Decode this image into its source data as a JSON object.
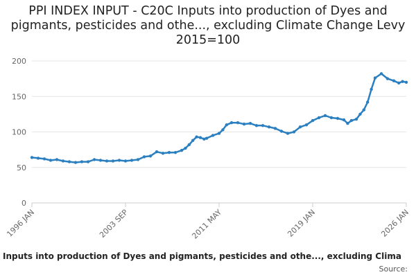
{
  "chart_data": {
    "type": "line",
    "title": "PPI INDEX INPUT - C20C Inputs into production of Dyes and pigmants, pesticides and othe..., excluding Climate Change Levy 2015=100",
    "xlabel": "",
    "ylabel": "",
    "ylim": [
      0,
      200
    ],
    "yticks": [
      0,
      50,
      100,
      150,
      200
    ],
    "xticks": [
      "1996 JAN",
      "2003 SEP",
      "2011 MAY",
      "2019 JAN",
      "2026 JAN"
    ],
    "grid": "horizontal",
    "legend_position": "bottom",
    "color": "#2a7fc1",
    "series": [
      {
        "name": "Inputs into production of Dyes and pigmants, pesticides and othe..., excluding Clima",
        "x": [
          1996.0,
          1996.5,
          1997.0,
          1997.5,
          1998.0,
          1998.5,
          1999.0,
          1999.5,
          2000.0,
          2000.5,
          2001.0,
          2001.5,
          2002.0,
          2002.5,
          2003.0,
          2003.5,
          2004.0,
          2004.5,
          2005.0,
          2005.5,
          2006.0,
          2006.5,
          2007.0,
          2007.5,
          2008.0,
          2008.3,
          2008.6,
          2008.9,
          2009.2,
          2009.5,
          2009.8,
          2010.0,
          2010.5,
          2011.0,
          2011.3,
          2011.6,
          2012.0,
          2012.5,
          2013.0,
          2013.5,
          2014.0,
          2014.5,
          2015.0,
          2015.5,
          2016.0,
          2016.5,
          2017.0,
          2017.5,
          2018.0,
          2018.5,
          2019.0,
          2019.5,
          2020.0,
          2020.5,
          2021.0,
          2021.3,
          2021.6,
          2022.0,
          2022.3,
          2022.6,
          2022.9,
          2023.2,
          2023.5,
          2024.0,
          2024.5,
          2025.0,
          2025.4,
          2025.7,
          2026.0
        ],
        "values": [
          64,
          63,
          62,
          60,
          61,
          59,
          58,
          57,
          58,
          58,
          61,
          60,
          59,
          59,
          60,
          59,
          60,
          61,
          65,
          66,
          72,
          70,
          71,
          71,
          74,
          77,
          82,
          88,
          93,
          92,
          90,
          91,
          95,
          98,
          103,
          110,
          113,
          113,
          111,
          112,
          109,
          109,
          107,
          105,
          101,
          98,
          100,
          107,
          110,
          116,
          120,
          123,
          120,
          119,
          117,
          112,
          116,
          118,
          125,
          131,
          142,
          160,
          176,
          182,
          175,
          172,
          169,
          171,
          170
        ]
      }
    ]
  },
  "legend": {
    "label": "Inputs into production of Dyes and pigmants, pesticides and othe..., excluding Clima"
  },
  "source": {
    "label": "Source:"
  }
}
